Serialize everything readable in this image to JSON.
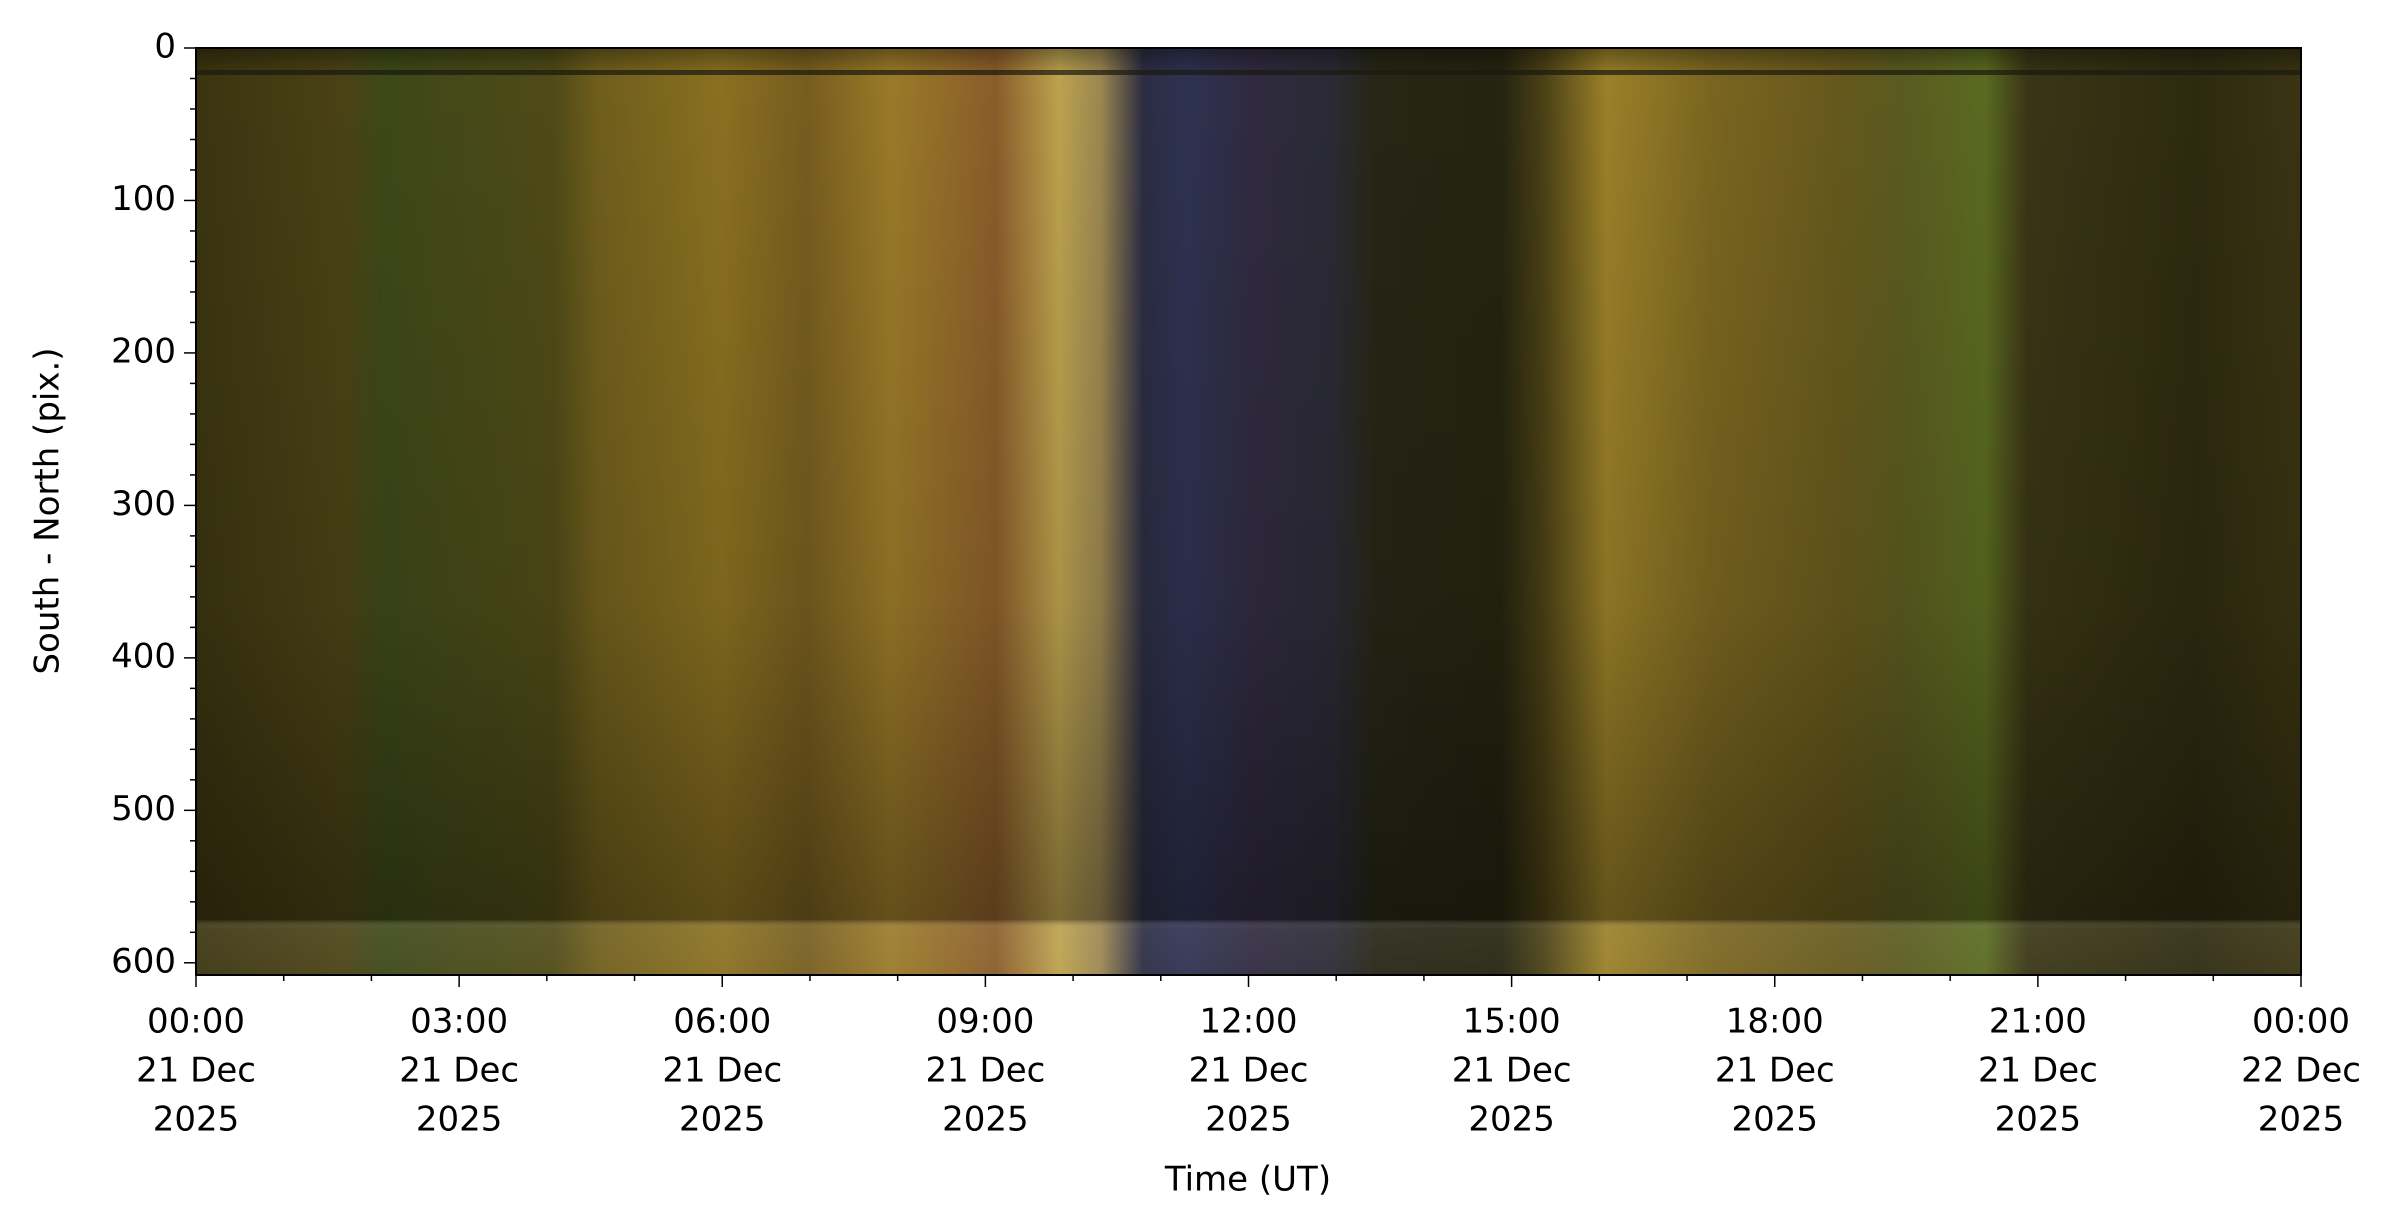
{
  "chart_data": {
    "type": "keogram",
    "x_label": "Time (UT)",
    "y_label": "South - North (pix.)",
    "xlim": [
      "2025-12-21T00:00",
      "2025-12-22T00:00"
    ],
    "xticks": [
      {
        "value": "2025-12-21T00:00",
        "label": [
          "00:00",
          "21 Dec",
          "2025"
        ]
      },
      {
        "value": "2025-12-21T03:00",
        "label": [
          "03:00",
          "21 Dec",
          "2025"
        ]
      },
      {
        "value": "2025-12-21T06:00",
        "label": [
          "06:00",
          "21 Dec",
          "2025"
        ]
      },
      {
        "value": "2025-12-21T09:00",
        "label": [
          "09:00",
          "21 Dec",
          "2025"
        ]
      },
      {
        "value": "2025-12-21T12:00",
        "label": [
          "12:00",
          "21 Dec",
          "2025"
        ]
      },
      {
        "value": "2025-12-21T15:00",
        "label": [
          "15:00",
          "21 Dec",
          "2025"
        ]
      },
      {
        "value": "2025-12-21T18:00",
        "label": [
          "18:00",
          "21 Dec",
          "2025"
        ]
      },
      {
        "value": "2025-12-21T21:00",
        "label": [
          "21:00",
          "21 Dec",
          "2025"
        ]
      },
      {
        "value": "2025-12-22T00:00",
        "label": [
          "00:00",
          "22 Dec",
          "2025"
        ]
      }
    ],
    "xminorticks": [
      "2025-12-21T01:00",
      "2025-12-21T02:00",
      "2025-12-21T04:00",
      "2025-12-21T05:00",
      "2025-12-21T07:00",
      "2025-12-21T08:00",
      "2025-12-21T10:00",
      "2025-12-21T11:00",
      "2025-12-21T13:00",
      "2025-12-21T14:00",
      "2025-12-21T16:00",
      "2025-12-21T17:00",
      "2025-12-21T19:00",
      "2025-12-21T20:00",
      "2025-12-21T22:00",
      "2025-12-21T23:00"
    ],
    "ylim": [
      608,
      0
    ],
    "yticks": [
      0,
      100,
      200,
      300,
      400,
      500,
      600
    ],
    "yminorticks": [
      20,
      40,
      60,
      80,
      120,
      140,
      160,
      180,
      220,
      240,
      260,
      280,
      320,
      340,
      360,
      380,
      420,
      440,
      460,
      480,
      520,
      540,
      560,
      580
    ]
  }
}
